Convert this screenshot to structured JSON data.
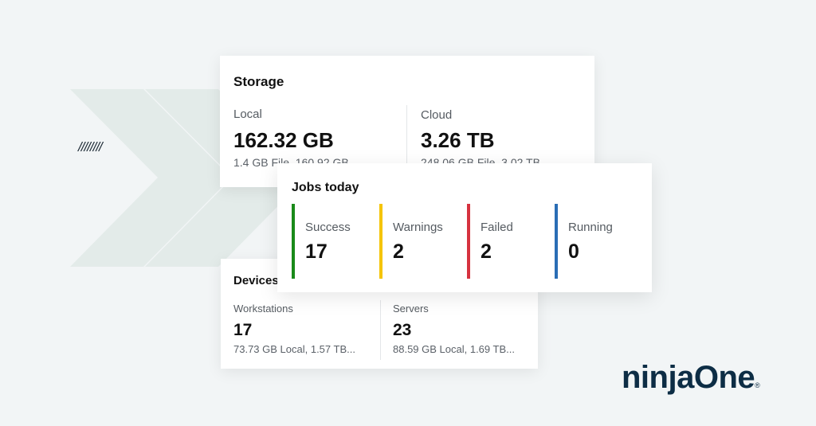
{
  "storage": {
    "title": "Storage",
    "local": {
      "label": "Local",
      "value": "162.32 GB",
      "detail": "1.4 GB File, 160.92 GB"
    },
    "cloud": {
      "label": "Cloud",
      "value": "3.26 TB",
      "detail": "248.06 GB File, 3.02 TB"
    }
  },
  "jobs": {
    "title": "Jobs today",
    "items": [
      {
        "label": "Success",
        "value": "17",
        "color": "#1a8a1a"
      },
      {
        "label": "Warnings",
        "value": "2",
        "color": "#f5c400"
      },
      {
        "label": "Failed",
        "value": "2",
        "color": "#d6323f"
      },
      {
        "label": "Running",
        "value": "0",
        "color": "#2a6db5"
      }
    ]
  },
  "devices": {
    "title": "Devices",
    "workstations": {
      "label": "Workstations",
      "value": "17",
      "detail": "73.73 GB Local, 1.57 TB..."
    },
    "servers": {
      "label": "Servers",
      "value": "23",
      "detail": "88.59 GB Local, 1.69 TB..."
    }
  },
  "brand": {
    "logo": "ninjaOne",
    "registered": "®",
    "color": "#0d2d45"
  },
  "decor": {
    "slashes": "////////"
  }
}
